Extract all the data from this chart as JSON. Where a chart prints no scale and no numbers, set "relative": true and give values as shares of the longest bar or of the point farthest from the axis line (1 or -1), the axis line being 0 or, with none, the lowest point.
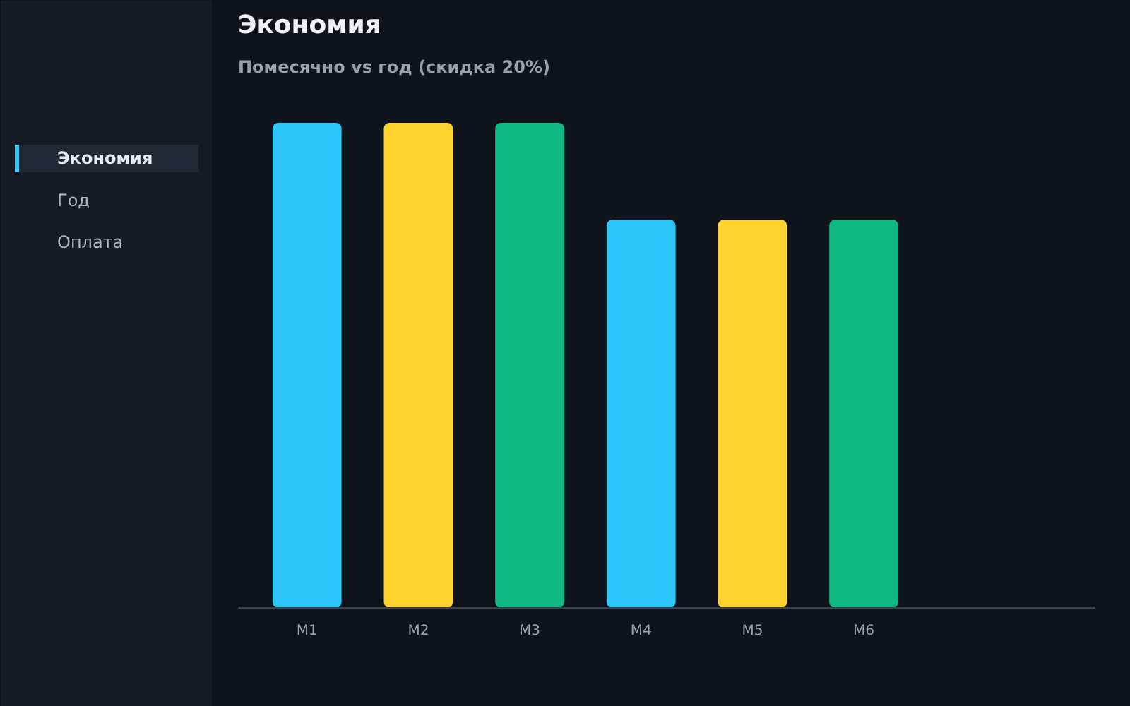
{
  "chart_data": [
    {
      "type": "other",
      "annotations": [
        "Экономия",
        "Год",
        "Оплата"
      ]
    },
    {
      "type": "bar",
      "title": "Экономия",
      "subtitle": "Помесячно vs год (скидка 20%)",
      "categories": [
        "M1",
        "M2",
        "M3",
        "M4",
        "M5",
        "M6"
      ],
      "values": [
        1,
        1,
        1,
        0.8,
        0.8,
        0.8
      ],
      "colors": [
        "#2ec5f8",
        "#ffd12f",
        "#10b981",
        "#2ec5f8",
        "#ffd12f",
        "#10b981"
      ],
      "relative": true
    }
  ]
}
